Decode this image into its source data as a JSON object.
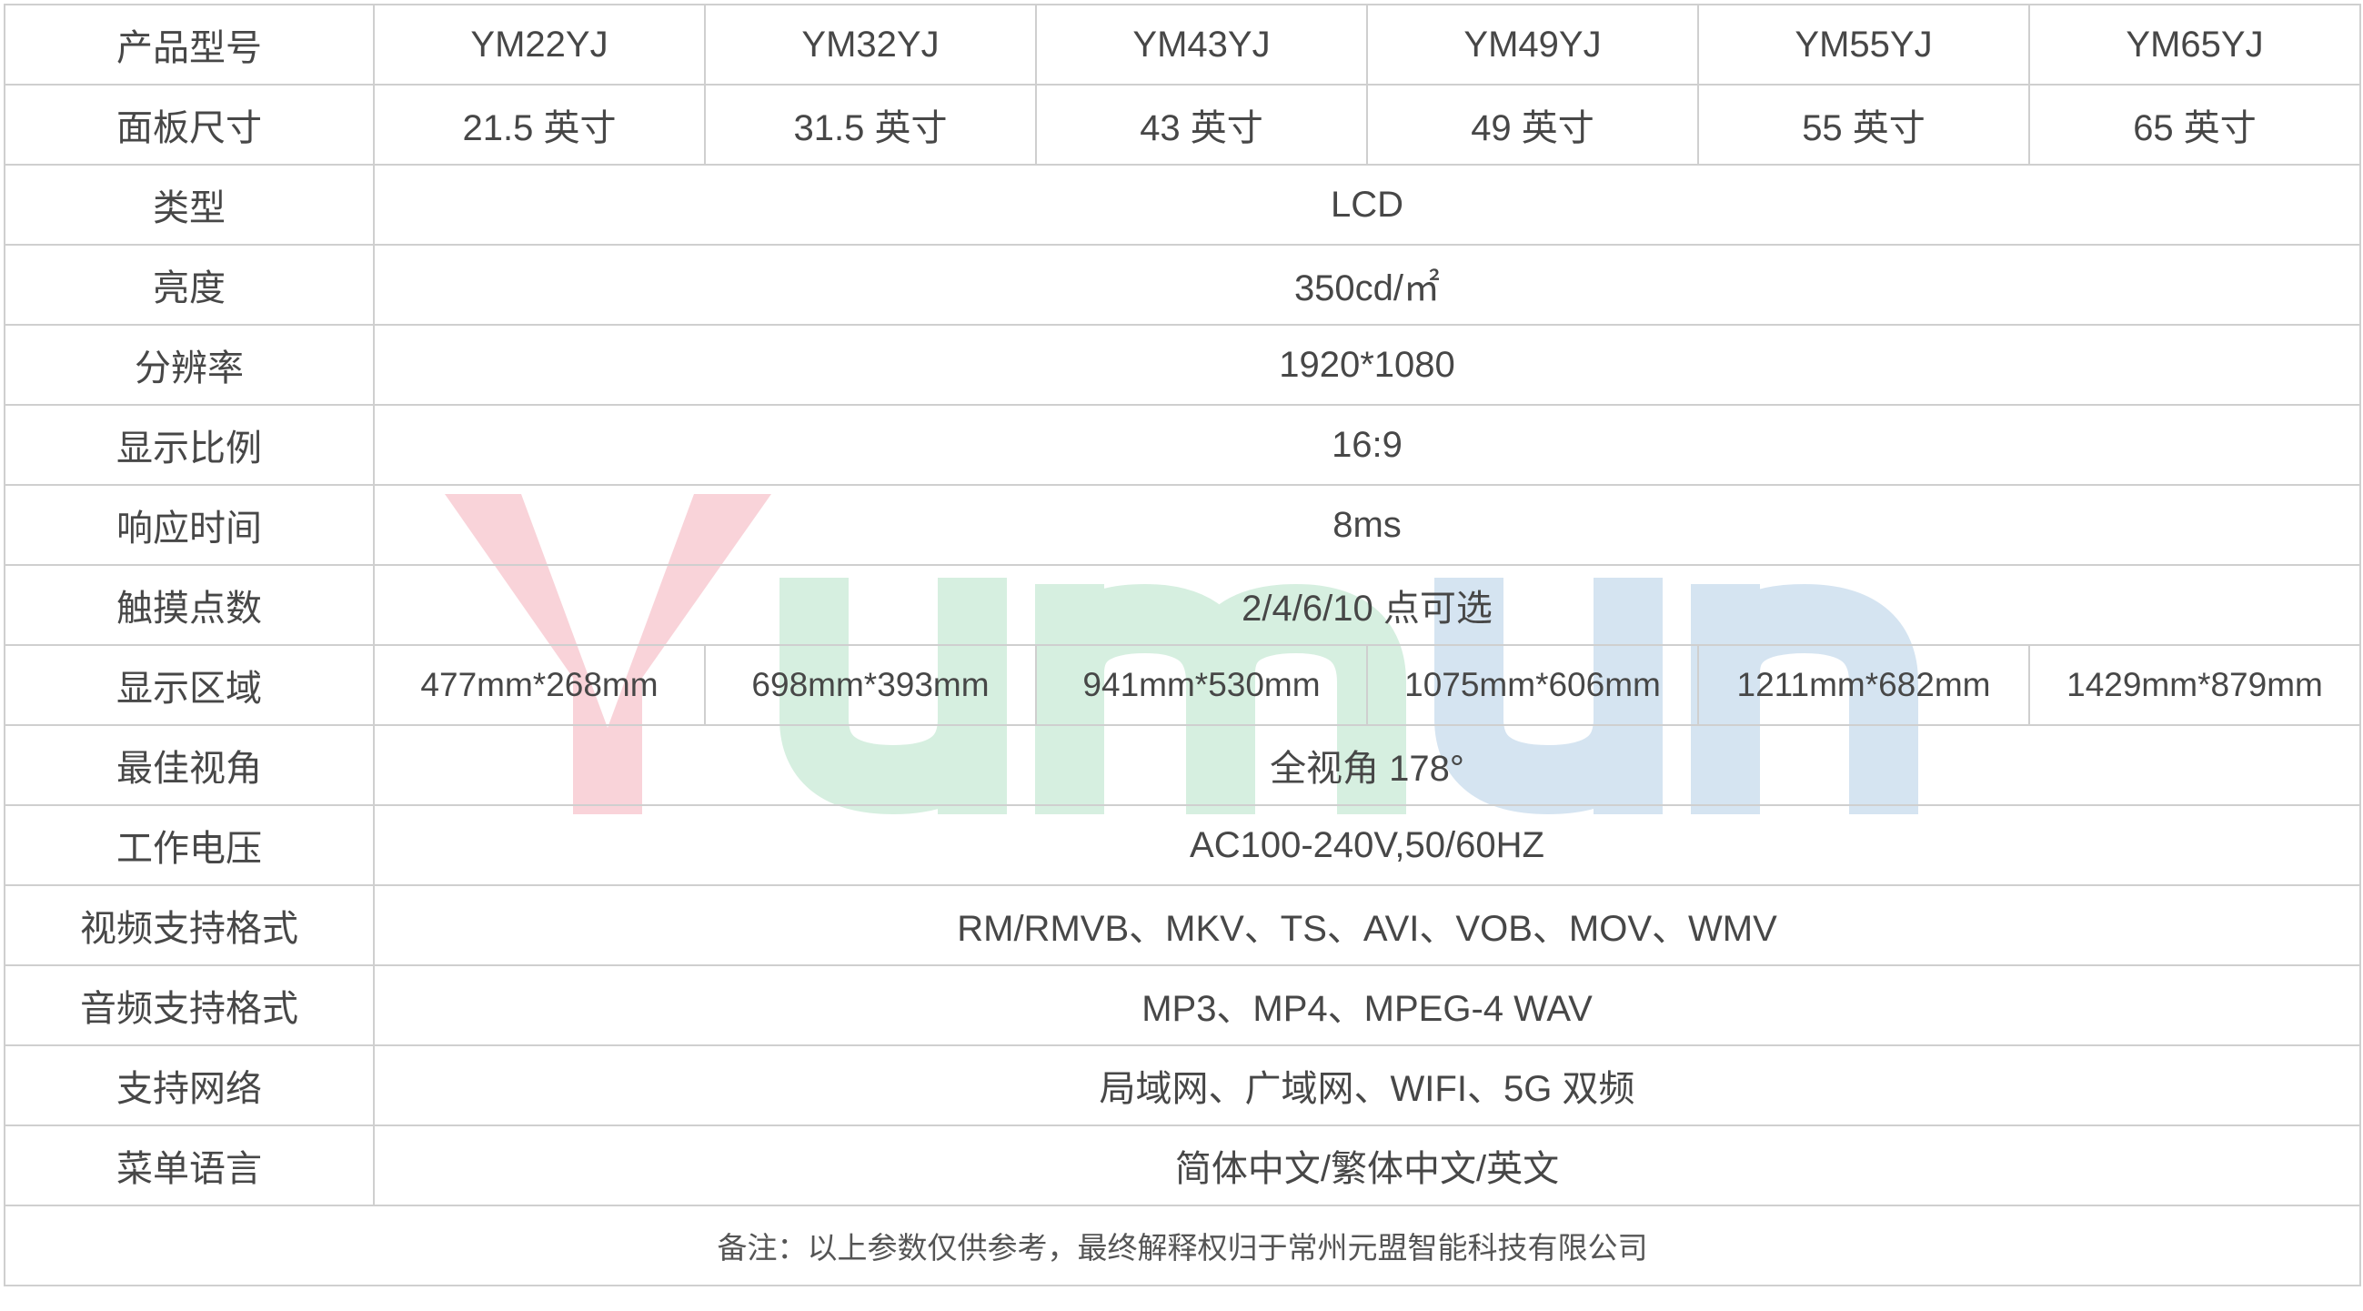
{
  "watermark": {
    "text": "Yumun",
    "colors": {
      "Y": "#f9d3d9",
      "green": "#d6efe0",
      "blue": "#d5e4f1"
    }
  },
  "table": {
    "header": {
      "label": "产品型号",
      "values": [
        "YM22YJ",
        "YM32YJ",
        "YM43YJ",
        "YM49YJ",
        "YM55YJ",
        "YM65YJ"
      ]
    },
    "panel_size": {
      "label": "面板尺寸",
      "values": [
        "21.5 英寸",
        "31.5 英寸",
        "43 英寸",
        "49 英寸",
        "55 英寸",
        "65 英寸"
      ]
    },
    "type": {
      "label": "类型",
      "value": "LCD"
    },
    "brightness": {
      "label": "亮度",
      "value": "350cd/㎡"
    },
    "resolution": {
      "label": "分辨率",
      "value": "1920*1080"
    },
    "aspect_ratio": {
      "label": "显示比例",
      "value": "16:9"
    },
    "response_time": {
      "label": "响应时间",
      "value": "8ms"
    },
    "touch_points": {
      "label": "触摸点数",
      "value": "2/4/6/10 点可选"
    },
    "display_area": {
      "label": "显示区域",
      "values": [
        "477mm*268mm",
        "698mm*393mm",
        "941mm*530mm",
        "1075mm*606mm",
        "1211mm*682mm",
        "1429mm*879mm"
      ]
    },
    "viewing_angle": {
      "label": "最佳视角",
      "value": "全视角 178°"
    },
    "voltage": {
      "label": "工作电压",
      "value": "AC100-240V,50/60HZ"
    },
    "video_formats": {
      "label": "视频支持格式",
      "value": "RM/RMVB、MKV、TS、AVI、VOB、MOV、WMV"
    },
    "audio_formats": {
      "label": "音频支持格式",
      "value": "MP3、MP4、MPEG-4 WAV"
    },
    "network": {
      "label": "支持网络",
      "value": "局域网、广域网、WIFI、5G 双频"
    },
    "menu_language": {
      "label": "菜单语言",
      "value": "简体中文/繁体中文/英文"
    },
    "note": "备注：以上参数仅供参考，最终解释权归于常州元盟智能科技有限公司"
  }
}
